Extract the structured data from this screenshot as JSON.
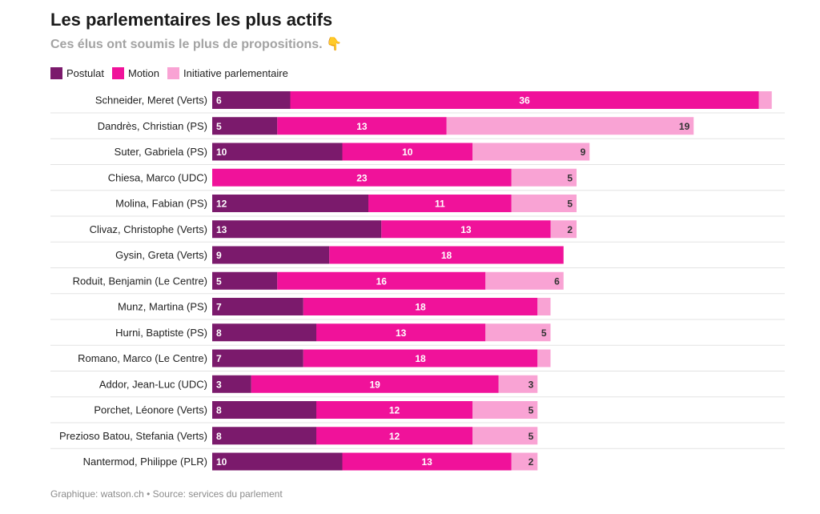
{
  "title": "Les parlementaires les plus actifs",
  "subtitle": "Ces élus ont soumis le plus de propositions. 👇",
  "footer": "Graphique: watson.ch • Source: services du parlement",
  "colors": {
    "postulat": "#7b1a6c",
    "motion": "#f0129a",
    "initiative": "#f9a3d4",
    "divider": "#e3e3e3"
  },
  "chart_data": {
    "type": "bar",
    "orientation": "horizontal",
    "stacked": true,
    "legend_position": "top-left",
    "xlim": [
      0,
      43
    ],
    "categories": [
      "Schneider, Meret (Verts)",
      "Dandrès, Christian (PS)",
      "Suter, Gabriela (PS)",
      "Chiesa, Marco (UDC)",
      "Molina, Fabian (PS)",
      "Clivaz, Christophe (Verts)",
      "Gysin, Greta (Verts)",
      "Roduit, Benjamin (Le Centre)",
      "Munz, Martina (PS)",
      "Hurni, Baptiste (PS)",
      "Romano, Marco (Le Centre)",
      "Addor, Jean-Luc (UDC)",
      "Porchet, Léonore (Verts)",
      "Prezioso Batou, Stefania (Verts)",
      "Nantermod, Philippe (PLR)"
    ],
    "series": [
      {
        "name": "Postulat",
        "values": [
          6,
          5,
          10,
          0,
          12,
          13,
          9,
          5,
          7,
          8,
          7,
          3,
          8,
          8,
          10
        ]
      },
      {
        "name": "Motion",
        "values": [
          36,
          13,
          10,
          23,
          11,
          13,
          18,
          16,
          18,
          13,
          18,
          19,
          12,
          12,
          13
        ]
      },
      {
        "name": "Initiative parlementaire",
        "values": [
          1,
          19,
          9,
          5,
          5,
          2,
          0,
          6,
          1,
          5,
          1,
          3,
          5,
          5,
          2
        ]
      }
    ],
    "labels_shown": [
      [
        true,
        true,
        false
      ],
      [
        true,
        true,
        true
      ],
      [
        true,
        true,
        true
      ],
      [
        false,
        true,
        true
      ],
      [
        true,
        true,
        true
      ],
      [
        true,
        true,
        true
      ],
      [
        true,
        true,
        false
      ],
      [
        true,
        true,
        true
      ],
      [
        true,
        true,
        false
      ],
      [
        true,
        true,
        true
      ],
      [
        true,
        true,
        false
      ],
      [
        true,
        true,
        true
      ],
      [
        true,
        true,
        true
      ],
      [
        true,
        true,
        true
      ],
      [
        true,
        true,
        true
      ]
    ]
  }
}
